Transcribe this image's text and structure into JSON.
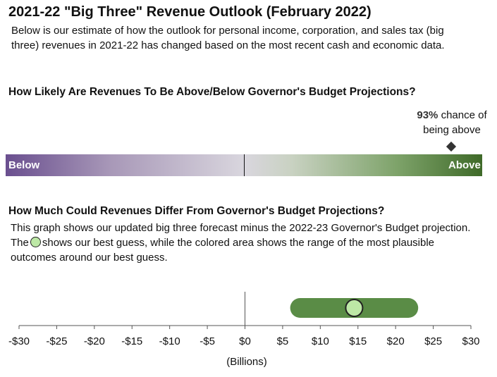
{
  "title": "2021-22 \"Big Three\" Revenue Outlook (February 2022)",
  "intro": "Below is our estimate of how the outlook for personal income, corporation, and sales tax (big three) revenues in 2021-22 has changed based on the most recent cash and economic data.",
  "likely_section": {
    "heading": "How Likely Are Revenues To Be Above/Below Governor's Budget Projections?",
    "chance_percent": "93%",
    "chance_text_1": "chance of",
    "chance_text_2": "being above",
    "probability_above": 0.93,
    "below_label": "Below",
    "above_label": "Above",
    "colors": {
      "below": "#6a4f8f",
      "neutral": "#d9d6de",
      "above": "#3f6a29"
    }
  },
  "differ_section": {
    "heading": "How Much Could Revenues Differ From Governor's Budget Projections?",
    "text_before_icon": "This graph shows our updated big three forecast minus the 2022-23 Governor's Budget projection. The",
    "text_after_icon": "shows our best guess, while the colored area shows the range of the most plausible outcomes around our best guess."
  },
  "chart_data": {
    "type": "range",
    "best_guess": 14.5,
    "range_low": 6,
    "range_high": 23,
    "xlim": [
      -30,
      30
    ],
    "ticks": [
      -30,
      -25,
      -20,
      -15,
      -10,
      -5,
      0,
      5,
      10,
      15,
      20,
      25,
      30
    ],
    "tick_labels": [
      "-$30",
      "-$25",
      "-$20",
      "-$15",
      "-$10",
      "-$5",
      "$0",
      "$5",
      "$10",
      "$15",
      "$20",
      "$25",
      "$30"
    ],
    "xlabel": "(Billions)",
    "colors": {
      "range": "#5a8c46",
      "best_guess": "#bde8a6",
      "axis": "#555555"
    }
  }
}
